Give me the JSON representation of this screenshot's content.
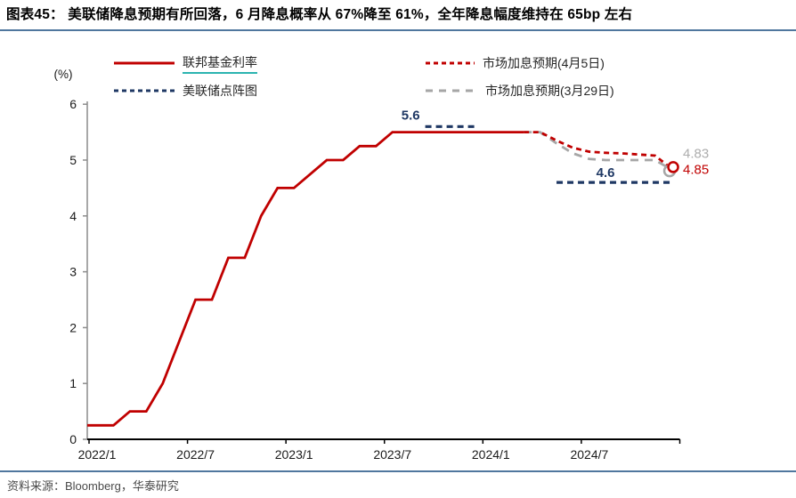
{
  "page": {
    "title": "图表45：  美联储降息预期有所回落，6 月降息概率从 67%降至 61%，全年降息幅度维持在 65bp 左右",
    "source": "资料来源：Bloomberg，华泰研究",
    "rule_color": "#50779E"
  },
  "legend": {
    "items": [
      {
        "label": "联邦基金利率",
        "color": "#C00000",
        "dash": "solid",
        "underline_color": "#2CB4B0"
      },
      {
        "label": "美联储点阵图",
        "color": "#1F3864",
        "dash": "small"
      },
      {
        "label": "市场加息预期(4月5日)",
        "color": "#C00000",
        "dash": "small"
      },
      {
        "label": "市场加息预期(3月29日)",
        "color": "#A6A6A6",
        "dash": "long"
      }
    ]
  },
  "chart_data": {
    "type": "line",
    "title": "",
    "ylabel": "(%)",
    "ylim": [
      0,
      6
    ],
    "y_ticks": [
      0,
      1,
      2,
      3,
      4,
      5,
      6
    ],
    "x_start": "2022/1",
    "x_end": "2025/1",
    "x_tick_labels": [
      "2022/1",
      "2022/7",
      "2023/1",
      "2023/7",
      "2024/1",
      "2024/7"
    ],
    "x_months_per_tick": 6,
    "grid": "off",
    "legend_position": "top",
    "series": [
      {
        "name": "联邦基金利率",
        "color": "#C00000",
        "style": "solid",
        "start": "2022/1",
        "values": [
          0.25,
          0.25,
          0.5,
          0.5,
          1.0,
          1.75,
          2.5,
          2.5,
          3.25,
          3.25,
          4.0,
          4.5,
          4.5,
          4.75,
          5.0,
          5.0,
          5.25,
          5.25,
          5.5,
          5.5,
          5.5,
          5.5,
          5.5,
          5.5,
          5.5,
          5.5,
          5.5
        ]
      },
      {
        "name": "市场加息预期(3月29日)",
        "color": "#A6A6A6",
        "style": "dash-long",
        "start": "2024/3",
        "values": [
          5.5,
          5.5,
          5.3,
          5.12,
          5.02,
          5.0,
          5.0,
          5.0,
          5.0,
          4.83
        ],
        "end_label": "4.83",
        "end_label_pos": "above",
        "end_marker": true
      },
      {
        "name": "市场加息预期(4月5日)",
        "color": "#C00000",
        "style": "dash-small",
        "start": "2024/3",
        "values": [
          5.5,
          5.5,
          5.35,
          5.22,
          5.15,
          5.13,
          5.12,
          5.1,
          5.08,
          4.85
        ],
        "end_label": "4.85",
        "end_label_pos": "below",
        "end_marker": true
      }
    ],
    "dot_plot": {
      "name": "美联储点阵图",
      "color": "#1F3864",
      "segments": [
        {
          "label": "5.6",
          "value": 5.6,
          "from": "2023/9",
          "to": "2023/12",
          "label_side": "left"
        },
        {
          "label": "4.6",
          "value": 4.6,
          "from": "2024/5",
          "to": "2024/12",
          "label_side": "inner"
        }
      ]
    },
    "end_label_colors": {
      "4.85": "#C00000",
      "4.83": "#ADADAD"
    }
  }
}
